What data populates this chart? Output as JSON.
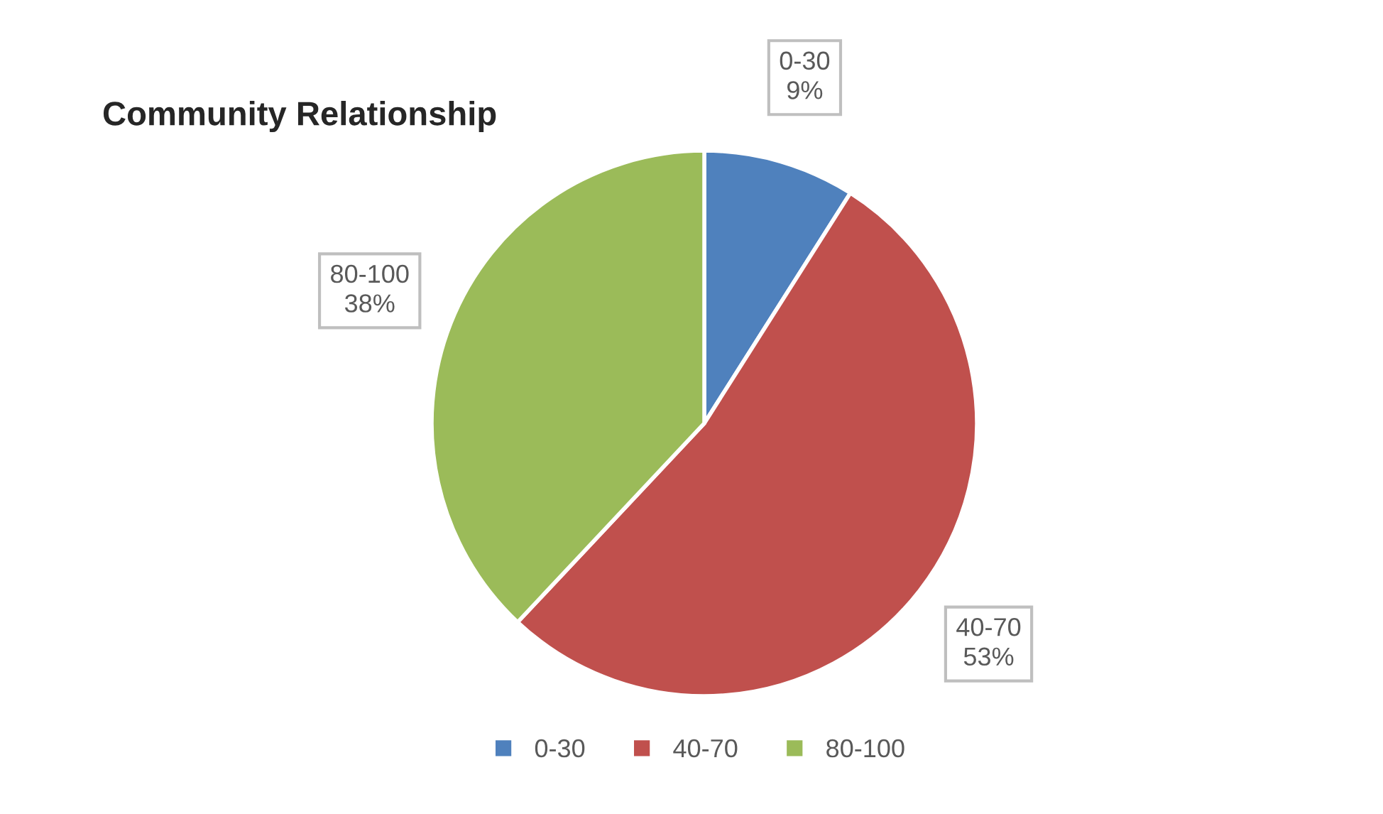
{
  "chart_data": {
    "type": "pie",
    "title": "Community Relationship",
    "categories": [
      "0-30",
      "40-70",
      "80-100"
    ],
    "values": [
      9,
      53,
      38
    ],
    "colors": [
      "#4f81bd",
      "#c0504d",
      "#9bbb59"
    ],
    "value_labels": [
      "9%",
      "53%",
      "38%"
    ],
    "legend": "bottom"
  }
}
